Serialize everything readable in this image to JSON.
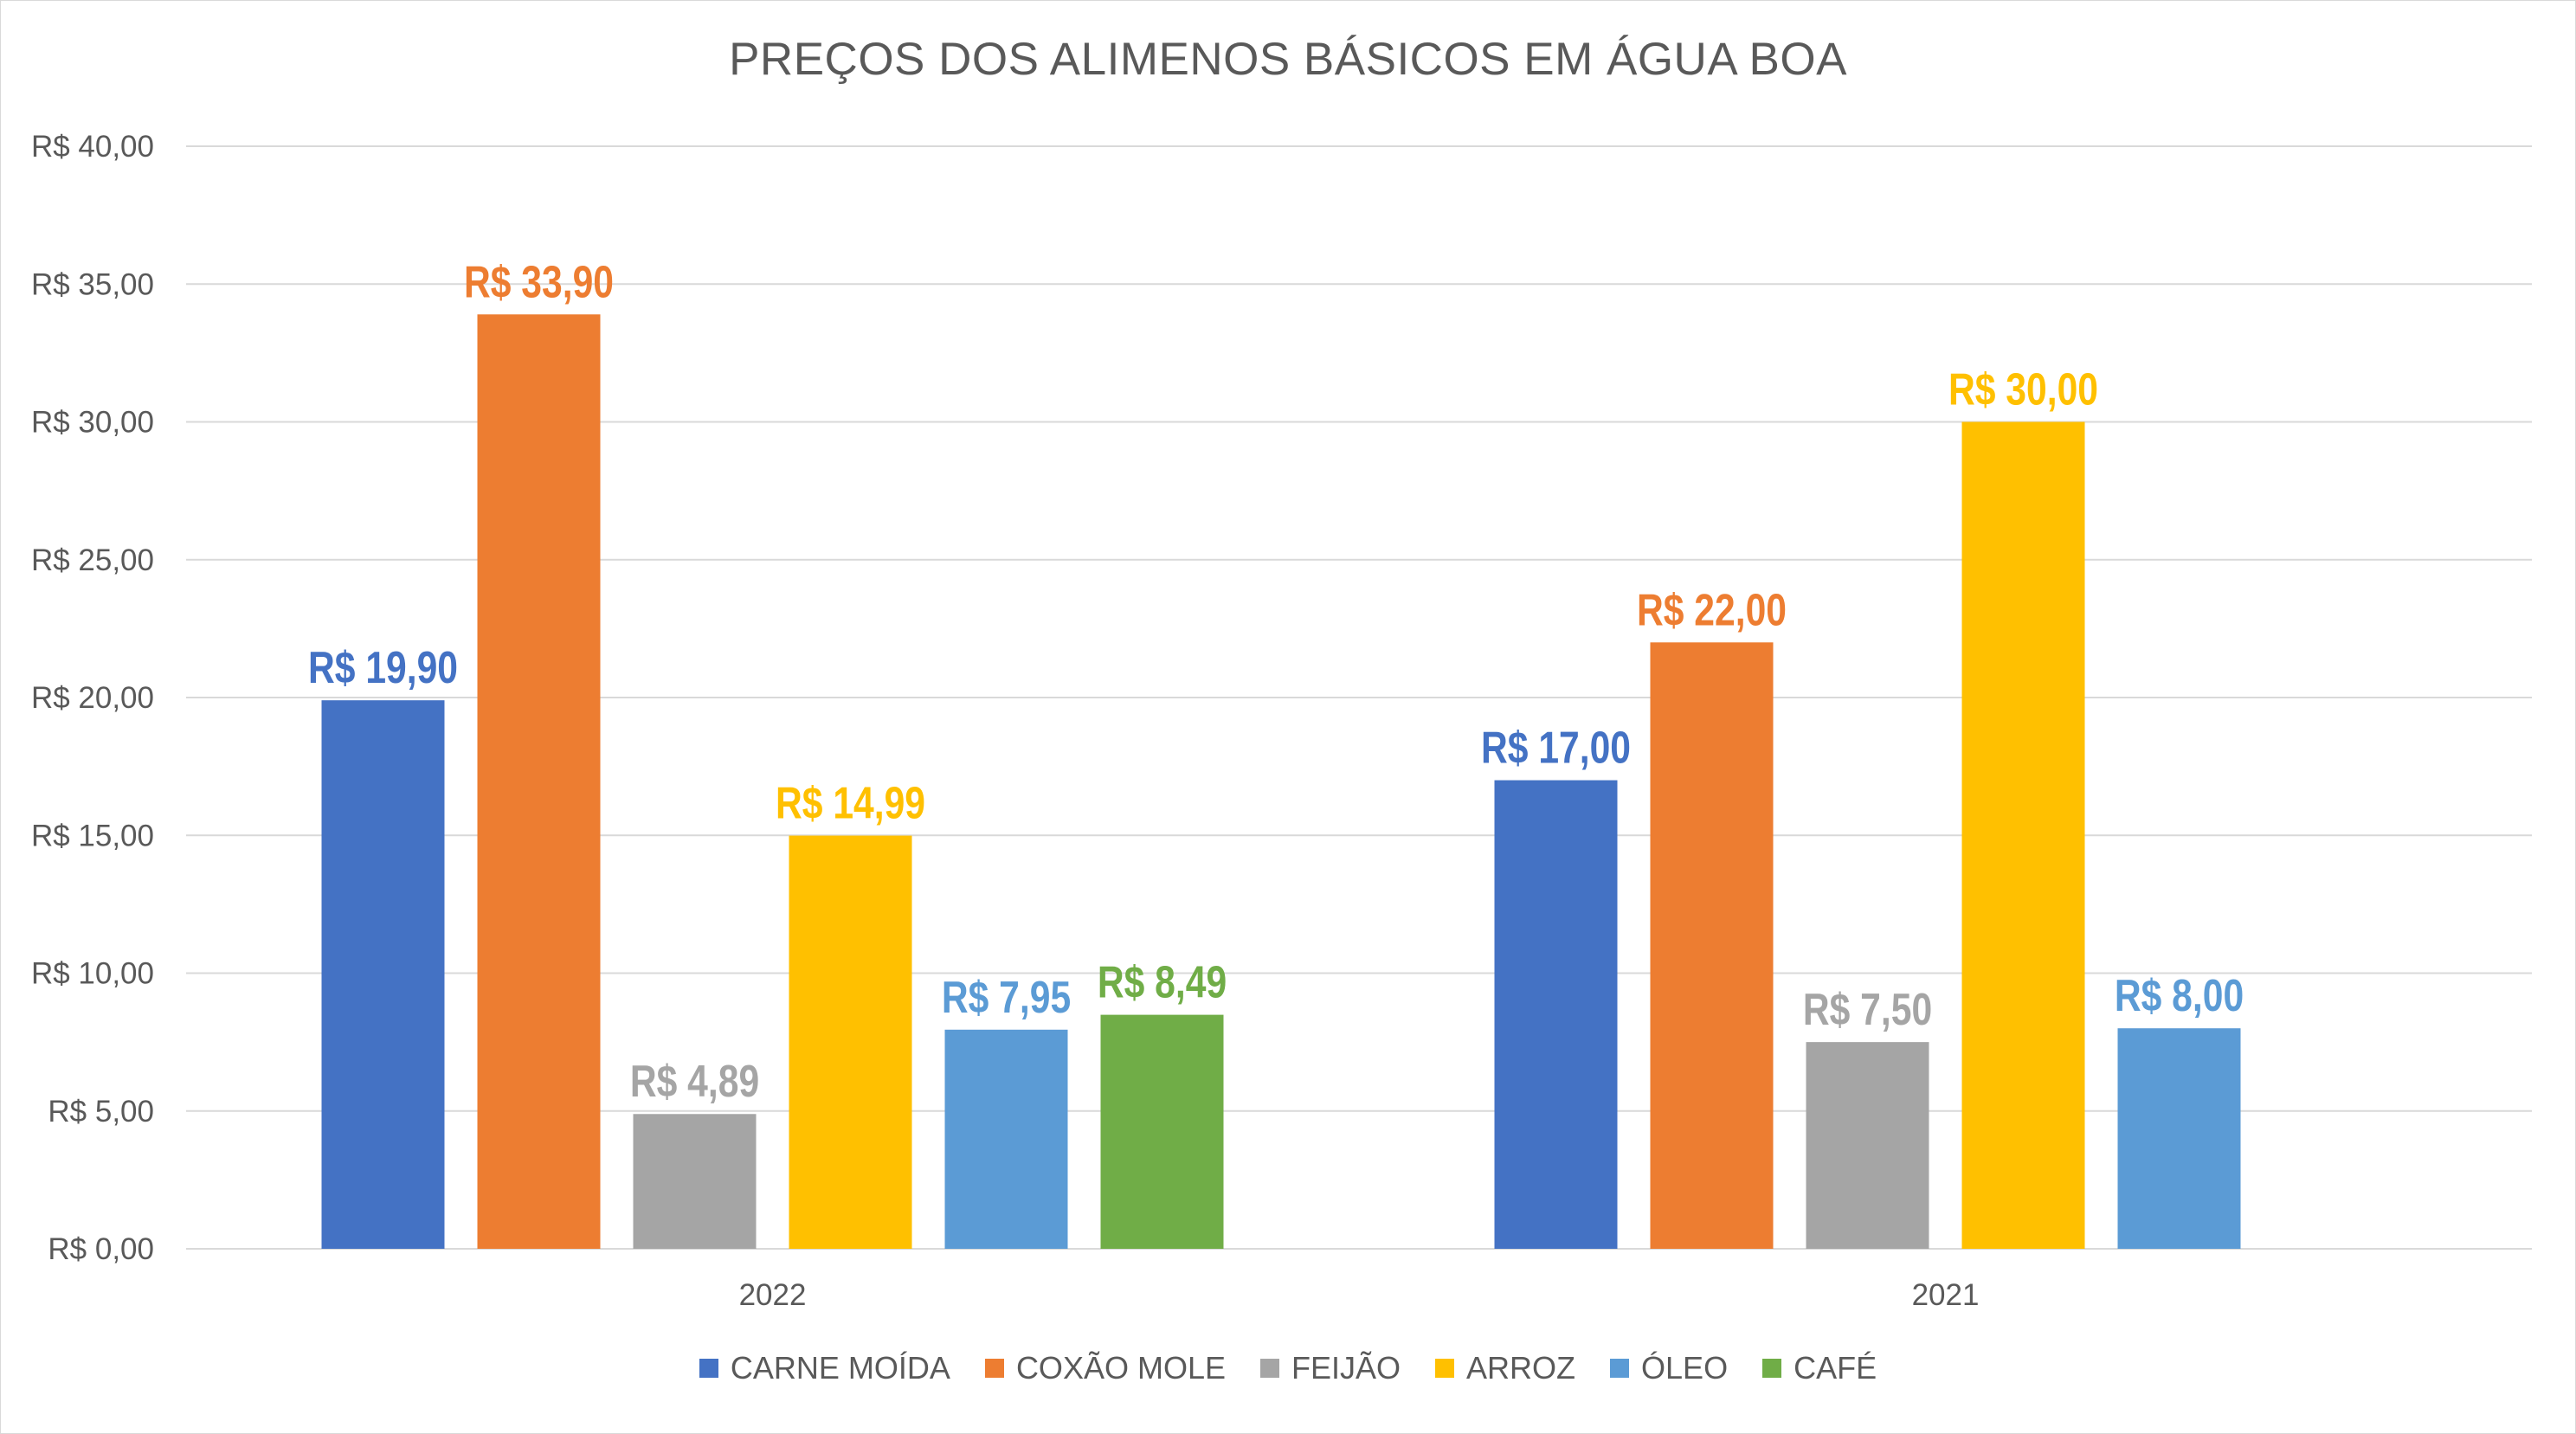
{
  "chart_data": {
    "type": "bar",
    "title": "PREÇOS DOS ALIMENOS BÁSICOS EM ÁGUA BOA",
    "xlabel": "",
    "ylabel": "",
    "categories": [
      "2022",
      "2021"
    ],
    "ylim": [
      0,
      40
    ],
    "yticks": [
      0,
      5,
      10,
      15,
      20,
      25,
      30,
      35,
      40
    ],
    "ytick_labels": [
      "R$ 0,00",
      "R$ 5,00",
      "R$ 10,00",
      "R$ 15,00",
      "R$ 20,00",
      "R$ 25,00",
      "R$ 30,00",
      "R$ 35,00",
      "R$ 40,00"
    ],
    "grid": true,
    "legend_position": "bottom",
    "series": [
      {
        "name": "CARNE MOÍDA",
        "color": "#4472C4",
        "values": [
          19.9,
          17.0
        ],
        "labels": [
          "R$ 19,90",
          "R$ 17,00"
        ]
      },
      {
        "name": "COXÃO MOLE",
        "color": "#ED7D31",
        "values": [
          33.9,
          22.0
        ],
        "labels": [
          "R$ 33,90",
          "R$ 22,00"
        ]
      },
      {
        "name": "FEIJÃO",
        "color": "#A5A5A5",
        "values": [
          4.89,
          7.5
        ],
        "labels": [
          "R$ 4,89",
          "R$ 7,50"
        ]
      },
      {
        "name": "ARROZ",
        "color": "#FFC000",
        "values": [
          14.99,
          30.0
        ],
        "labels": [
          "R$ 14,99",
          "R$ 30,00"
        ]
      },
      {
        "name": "ÓLEO",
        "color": "#5B9BD5",
        "values": [
          7.95,
          8.0
        ],
        "labels": [
          "R$ 7,95",
          "R$ 8,00"
        ]
      },
      {
        "name": "CAFÉ",
        "color": "#70AD47",
        "values": [
          8.49,
          null
        ],
        "labels": [
          "R$ 8,49",
          ""
        ]
      }
    ]
  }
}
